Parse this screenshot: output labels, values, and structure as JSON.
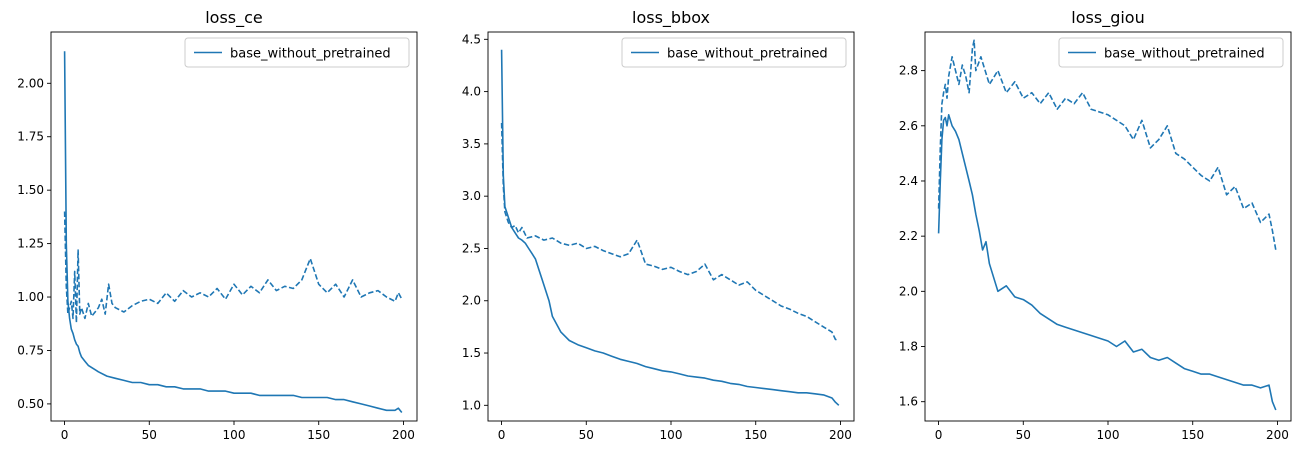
{
  "chart_data": [
    {
      "type": "line",
      "title": "loss_ce",
      "xlabel": "",
      "ylabel": "",
      "xlim": [
        -8,
        208
      ],
      "ylim": [
        0.42,
        2.24
      ],
      "xticks": [
        0,
        50,
        100,
        150,
        200
      ],
      "yticks": [
        0.5,
        0.75,
        1.0,
        1.25,
        1.5,
        1.75,
        2.0
      ],
      "ytick_labels": [
        "0.50",
        "0.75",
        "1.00",
        "1.25",
        "1.50",
        "1.75",
        "2.00"
      ],
      "legend": {
        "entries": [
          "base_without_pretrained"
        ],
        "location": "upper right"
      },
      "color": "#1f77b4",
      "series": [
        {
          "name": "base_without_pretrained",
          "style": "solid",
          "x": [
            0,
            1,
            2,
            3,
            4,
            5,
            6,
            7,
            8,
            9,
            10,
            12,
            14,
            16,
            18,
            20,
            25,
            30,
            35,
            40,
            45,
            50,
            55,
            60,
            65,
            70,
            75,
            80,
            85,
            90,
            95,
            100,
            105,
            110,
            115,
            120,
            125,
            130,
            135,
            140,
            145,
            150,
            155,
            160,
            165,
            170,
            175,
            180,
            185,
            190,
            195,
            197,
            199
          ],
          "y": [
            2.15,
            1.25,
            0.98,
            0.9,
            0.85,
            0.83,
            0.8,
            0.78,
            0.77,
            0.74,
            0.72,
            0.7,
            0.68,
            0.67,
            0.66,
            0.65,
            0.63,
            0.62,
            0.61,
            0.6,
            0.6,
            0.59,
            0.59,
            0.58,
            0.58,
            0.57,
            0.57,
            0.57,
            0.56,
            0.56,
            0.56,
            0.55,
            0.55,
            0.55,
            0.54,
            0.54,
            0.54,
            0.54,
            0.54,
            0.53,
            0.53,
            0.53,
            0.53,
            0.52,
            0.52,
            0.51,
            0.5,
            0.49,
            0.48,
            0.47,
            0.47,
            0.48,
            0.46
          ]
        },
        {
          "name": "",
          "style": "dashed",
          "x": [
            0,
            1,
            2,
            3,
            4,
            5,
            6,
            7,
            8,
            9,
            10,
            12,
            14,
            16,
            18,
            20,
            22,
            24,
            26,
            28,
            30,
            35,
            40,
            45,
            50,
            55,
            60,
            65,
            70,
            75,
            80,
            85,
            90,
            95,
            100,
            105,
            110,
            115,
            120,
            125,
            130,
            135,
            140,
            145,
            150,
            155,
            160,
            165,
            170,
            175,
            180,
            185,
            190,
            195,
            197,
            199
          ],
          "y": [
            1.4,
            1.05,
            0.92,
            0.95,
            0.98,
            0.9,
            1.12,
            0.88,
            1.22,
            0.92,
            0.95,
            0.9,
            0.97,
            0.91,
            0.93,
            0.95,
            0.99,
            0.92,
            1.06,
            0.97,
            0.95,
            0.93,
            0.96,
            0.98,
            0.99,
            0.97,
            1.02,
            0.98,
            1.03,
            1.0,
            1.02,
            1.0,
            1.04,
            0.99,
            1.06,
            1.01,
            1.05,
            1.02,
            1.08,
            1.03,
            1.05,
            1.04,
            1.08,
            1.18,
            1.06,
            1.02,
            1.06,
            1.0,
            1.08,
            1.0,
            1.02,
            1.03,
            1.0,
            0.98,
            1.02,
            0.99
          ]
        }
      ]
    },
    {
      "type": "line",
      "title": "loss_bbox",
      "xlabel": "",
      "ylabel": "",
      "xlim": [
        -8,
        208
      ],
      "ylim": [
        0.85,
        4.57
      ],
      "xticks": [
        0,
        50,
        100,
        150,
        200
      ],
      "yticks": [
        1.0,
        1.5,
        2.0,
        2.5,
        3.0,
        3.5,
        4.0,
        4.5
      ],
      "ytick_labels": [
        "1.0",
        "1.5",
        "2.0",
        "2.5",
        "3.0",
        "3.5",
        "4.0",
        "4.5"
      ],
      "legend": {
        "entries": [
          "base_without_pretrained"
        ],
        "location": "upper right"
      },
      "color": "#1f77b4",
      "series": [
        {
          "name": "base_without_pretrained",
          "style": "solid",
          "x": [
            0,
            1,
            2,
            3,
            4,
            5,
            6,
            8,
            10,
            12,
            14,
            16,
            18,
            20,
            22,
            24,
            26,
            28,
            30,
            35,
            40,
            45,
            50,
            55,
            60,
            65,
            70,
            75,
            80,
            85,
            90,
            95,
            100,
            105,
            110,
            115,
            120,
            125,
            130,
            135,
            140,
            145,
            150,
            155,
            160,
            165,
            170,
            175,
            180,
            185,
            190,
            195,
            197,
            199
          ],
          "y": [
            4.4,
            3.2,
            2.9,
            2.85,
            2.8,
            2.75,
            2.7,
            2.65,
            2.6,
            2.58,
            2.55,
            2.5,
            2.45,
            2.4,
            2.3,
            2.2,
            2.1,
            2.0,
            1.85,
            1.7,
            1.62,
            1.58,
            1.55,
            1.52,
            1.5,
            1.47,
            1.44,
            1.42,
            1.4,
            1.37,
            1.35,
            1.33,
            1.32,
            1.3,
            1.28,
            1.27,
            1.26,
            1.24,
            1.23,
            1.21,
            1.2,
            1.18,
            1.17,
            1.16,
            1.15,
            1.14,
            1.13,
            1.12,
            1.12,
            1.11,
            1.1,
            1.07,
            1.03,
            1.0
          ]
        },
        {
          "name": "",
          "style": "dashed",
          "x": [
            0,
            1,
            2,
            3,
            4,
            6,
            8,
            10,
            12,
            15,
            20,
            25,
            30,
            35,
            40,
            45,
            50,
            55,
            60,
            65,
            70,
            75,
            80,
            85,
            90,
            95,
            100,
            105,
            110,
            115,
            120,
            125,
            130,
            135,
            140,
            145,
            150,
            155,
            160,
            165,
            170,
            175,
            180,
            185,
            190,
            195,
            197,
            199
          ],
          "y": [
            3.7,
            3.1,
            2.85,
            2.8,
            2.75,
            2.7,
            2.72,
            2.65,
            2.7,
            2.6,
            2.62,
            2.58,
            2.6,
            2.55,
            2.53,
            2.55,
            2.5,
            2.52,
            2.48,
            2.45,
            2.42,
            2.45,
            2.58,
            2.35,
            2.33,
            2.3,
            2.32,
            2.28,
            2.25,
            2.28,
            2.35,
            2.2,
            2.25,
            2.2,
            2.15,
            2.18,
            2.1,
            2.05,
            2.0,
            1.95,
            1.92,
            1.88,
            1.85,
            1.8,
            1.75,
            1.7,
            1.63,
            1.62
          ]
        }
      ]
    },
    {
      "type": "line",
      "title": "loss_giou",
      "xlabel": "",
      "ylabel": "",
      "xlim": [
        -8,
        208
      ],
      "ylim": [
        1.53,
        2.94
      ],
      "xticks": [
        0,
        50,
        100,
        150,
        200
      ],
      "yticks": [
        1.6,
        1.8,
        2.0,
        2.2,
        2.4,
        2.6,
        2.8
      ],
      "ytick_labels": [
        "1.6",
        "1.8",
        "2.0",
        "2.2",
        "2.4",
        "2.6",
        "2.8"
      ],
      "legend": {
        "entries": [
          "base_without_pretrained"
        ],
        "location": "upper right"
      },
      "color": "#1f77b4",
      "series": [
        {
          "name": "base_without_pretrained",
          "style": "solid",
          "x": [
            0,
            1,
            2,
            3,
            4,
            5,
            6,
            8,
            10,
            12,
            14,
            16,
            18,
            20,
            22,
            24,
            26,
            28,
            30,
            35,
            40,
            45,
            50,
            55,
            60,
            65,
            70,
            75,
            80,
            85,
            90,
            95,
            100,
            105,
            110,
            115,
            120,
            125,
            130,
            135,
            140,
            145,
            150,
            155,
            160,
            165,
            170,
            175,
            180,
            185,
            190,
            195,
            197,
            199
          ],
          "y": [
            2.21,
            2.4,
            2.55,
            2.62,
            2.63,
            2.6,
            2.64,
            2.6,
            2.58,
            2.55,
            2.5,
            2.45,
            2.4,
            2.35,
            2.28,
            2.22,
            2.15,
            2.18,
            2.1,
            2.0,
            2.02,
            1.98,
            1.97,
            1.95,
            1.92,
            1.9,
            1.88,
            1.87,
            1.86,
            1.85,
            1.84,
            1.83,
            1.82,
            1.8,
            1.82,
            1.78,
            1.79,
            1.76,
            1.75,
            1.76,
            1.74,
            1.72,
            1.71,
            1.7,
            1.7,
            1.69,
            1.68,
            1.67,
            1.66,
            1.66,
            1.65,
            1.66,
            1.6,
            1.57
          ]
        },
        {
          "name": "",
          "style": "dashed",
          "x": [
            0,
            1,
            2,
            3,
            4,
            5,
            6,
            8,
            10,
            12,
            14,
            16,
            18,
            20,
            21,
            22,
            25,
            30,
            35,
            40,
            45,
            50,
            55,
            60,
            65,
            70,
            75,
            80,
            85,
            90,
            95,
            100,
            105,
            110,
            115,
            120,
            125,
            130,
            135,
            140,
            145,
            150,
            155,
            160,
            165,
            170,
            175,
            180,
            185,
            190,
            195,
            197,
            199
          ],
          "y": [
            2.3,
            2.52,
            2.68,
            2.72,
            2.75,
            2.7,
            2.78,
            2.85,
            2.8,
            2.75,
            2.82,
            2.78,
            2.72,
            2.88,
            2.91,
            2.8,
            2.85,
            2.75,
            2.8,
            2.72,
            2.76,
            2.7,
            2.72,
            2.68,
            2.72,
            2.66,
            2.7,
            2.68,
            2.72,
            2.66,
            2.65,
            2.64,
            2.62,
            2.6,
            2.55,
            2.62,
            2.52,
            2.55,
            2.6,
            2.5,
            2.48,
            2.45,
            2.42,
            2.4,
            2.45,
            2.35,
            2.38,
            2.3,
            2.32,
            2.25,
            2.28,
            2.22,
            2.15
          ]
        }
      ]
    }
  ]
}
